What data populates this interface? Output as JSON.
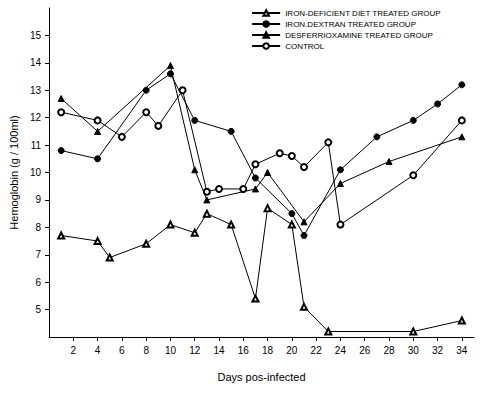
{
  "chart_data": {
    "type": "line",
    "x_label": "Days pos-infected",
    "y_label": "Hemoglobin (g / 100ml)",
    "xlim": [
      0,
      35
    ],
    "xticks": [
      2,
      4,
      6,
      8,
      10,
      12,
      14,
      16,
      18,
      20,
      22,
      24,
      26,
      28,
      30,
      32,
      34
    ],
    "ylim": [
      4,
      16
    ],
    "yticks": [
      5,
      6,
      7,
      8,
      9,
      10,
      11,
      12,
      13,
      14,
      15
    ],
    "grid": false,
    "legend": "top-right",
    "series": [
      {
        "name": "IRON-DEFICIENT DIET TREATED GROUP",
        "color": "#000000",
        "marker": "open-triangle",
        "x": [
          1,
          4,
          5,
          8,
          10,
          12,
          13,
          15,
          17,
          18,
          20,
          21,
          23,
          30,
          34
        ],
        "values": [
          7.7,
          7.5,
          6.9,
          7.4,
          8.1,
          7.8,
          8.5,
          8.1,
          5.4,
          8.7,
          8.1,
          5.1,
          4.2,
          4.2,
          4.6
        ]
      },
      {
        "name": "IRON.DEXTRAN TREATED GROUP",
        "color": "#000000",
        "marker": "filled-circle",
        "x": [
          1,
          4,
          8,
          10,
          12,
          15,
          17,
          20,
          21,
          24,
          27,
          30,
          32,
          34
        ],
        "values": [
          10.8,
          10.5,
          13.0,
          13.6,
          11.9,
          11.5,
          9.8,
          8.5,
          7.7,
          10.1,
          11.3,
          11.9,
          12.5,
          13.2
        ]
      },
      {
        "name": "DESFERRIOXAMINE TREATED GROUP",
        "color": "#000000",
        "marker": "filled-triangle",
        "x": [
          1,
          4,
          10,
          12,
          13,
          17,
          18,
          21,
          24,
          28,
          34
        ],
        "values": [
          12.7,
          11.5,
          13.9,
          10.1,
          9.0,
          9.4,
          10.0,
          8.2,
          9.6,
          10.4,
          11.3
        ]
      },
      {
        "name": "CONTROL",
        "color": "#000000",
        "marker": "open-circle",
        "x": [
          1,
          4,
          6,
          8,
          9,
          11,
          13,
          14,
          16,
          17,
          19,
          20,
          21,
          23,
          24,
          30,
          34
        ],
        "values": [
          12.2,
          11.9,
          11.3,
          12.2,
          11.7,
          13.0,
          9.3,
          9.4,
          9.4,
          10.3,
          10.7,
          10.6,
          10.2,
          11.1,
          8.1,
          9.9,
          11.9
        ]
      }
    ]
  }
}
